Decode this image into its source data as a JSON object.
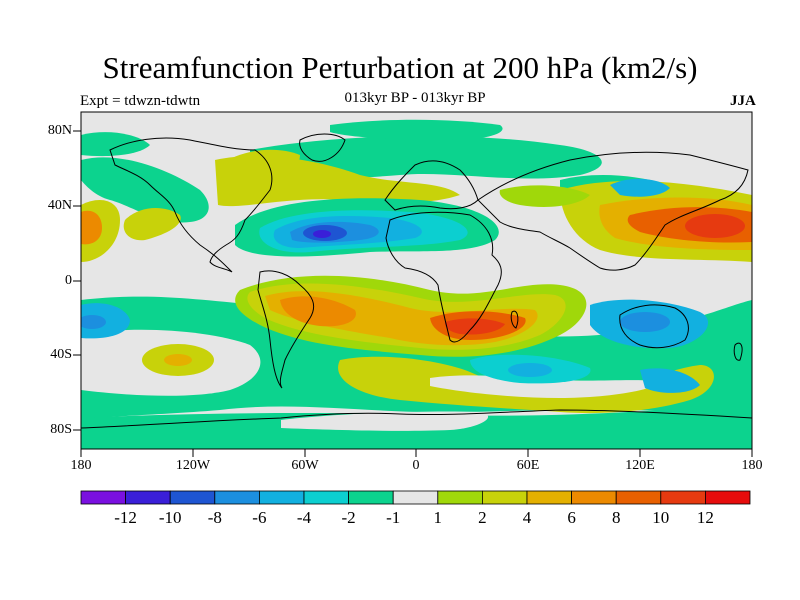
{
  "title": "Streamfunction Perturbation at 200 hPa (km2/s)",
  "subtitle": "013kyr BP - 013kyr BP",
  "left_label": "Expt = tdwzn-tdwtn",
  "right_label": "JJA",
  "y_ticks": [
    "80N",
    "40N",
    "0",
    "40S",
    "80S"
  ],
  "x_ticks": [
    "180",
    "120W",
    "60W",
    "0",
    "60E",
    "120E",
    "180"
  ],
  "colorbar": {
    "labels": [
      "-12",
      "-10",
      "-8",
      "-6",
      "-4",
      "-2",
      "-1",
      "1",
      "2",
      "4",
      "6",
      "8",
      "10",
      "12"
    ],
    "colors": [
      "#7a10e0",
      "#3a1fd8",
      "#1e55d2",
      "#1c8fdf",
      "#12b0e0",
      "#0ccfd0",
      "#0cd38e",
      "#e6e6e6",
      "#a0d80a",
      "#c8d20a",
      "#e4b000",
      "#ec8a00",
      "#e86000",
      "#e63a10",
      "#e60c0c"
    ]
  },
  "chart_data": {
    "type": "heatmap",
    "title": "Streamfunction Perturbation at 200 hPa (km2/s)",
    "units": "km2/s",
    "lon_range": [
      -180,
      180
    ],
    "lat_range": [
      -90,
      90
    ],
    "features": [
      {
        "name": "North Atlantic low",
        "lon": -50,
        "lat": 25,
        "value": -10
      },
      {
        "name": "NW Pacific high",
        "lon": 160,
        "lat": 28,
        "value": 11
      },
      {
        "name": "East Pacific high",
        "lon": -180,
        "lat": 35,
        "value": 7
      },
      {
        "name": "South Atlantic high",
        "lon": 25,
        "lat": -28,
        "value": 8
      },
      {
        "name": "South America high",
        "lon": -50,
        "lat": -18,
        "value": 7
      },
      {
        "name": "Indian Ocean low",
        "lon": 60,
        "lat": -48,
        "value": -5
      },
      {
        "name": "Australia low",
        "lon": 125,
        "lat": -22,
        "value": -6
      },
      {
        "name": "South Pacific low",
        "lon": -175,
        "lat": -22,
        "value": -5
      },
      {
        "name": "Southern high ring",
        "lon": -40,
        "lat": -68,
        "value": 3
      },
      {
        "name": "South Pacific high",
        "lon": -130,
        "lat": -42,
        "value": 3
      },
      {
        "name": "Pacific low",
        "lon": 135,
        "lat": -55,
        "value": -4
      },
      {
        "name": "Asia low",
        "lon": 120,
        "lat": 48,
        "value": -4
      },
      {
        "name": "Arctic low",
        "lon": 20,
        "lat": 74,
        "value": -3
      }
    ]
  }
}
